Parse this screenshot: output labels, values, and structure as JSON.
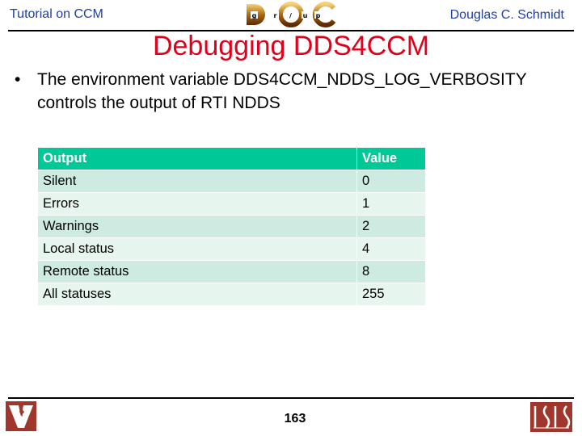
{
  "header": {
    "left": "Tutorial on CCM",
    "right": "Douglas C. Schmidt",
    "logo_text": "DOC group",
    "logo_letters": [
      "g",
      "r",
      "o",
      "u",
      "p"
    ]
  },
  "title": "Debugging DDS4CCM",
  "bullet": {
    "marker": "•",
    "text": "The environment variable DDS4CCM_NDDS_LOG_VERBOSITY controls the output of RTI NDDS"
  },
  "table": {
    "headers": [
      "Output",
      "Value"
    ],
    "rows": [
      [
        "Silent",
        "0"
      ],
      [
        "Errors",
        "1"
      ],
      [
        "Warnings",
        "2"
      ],
      [
        "Local status",
        "4"
      ],
      [
        "Remote status",
        "8"
      ],
      [
        "All statuses",
        "255"
      ]
    ],
    "colors": {
      "header": "#00c896",
      "row_dark": "#cdebe0",
      "row_light": "#e7f5ef"
    }
  },
  "footer": {
    "page_number": "163",
    "left_logo": "Vanderbilt V",
    "right_logo": "ISIS"
  }
}
